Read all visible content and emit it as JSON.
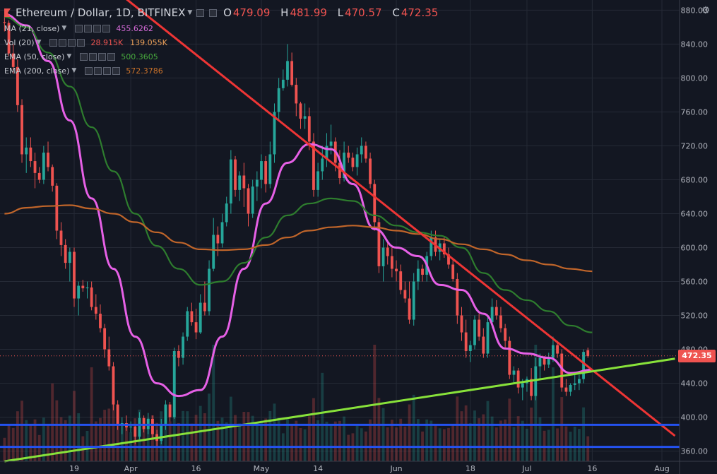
{
  "legend": {
    "symbol": "Ethereum / Dollar, 1D, BITFINEX",
    "ohlc": [
      {
        "key": "O",
        "value": "479.09"
      },
      {
        "key": "H",
        "value": "481.99"
      },
      {
        "key": "L",
        "value": "470.57"
      },
      {
        "key": "C",
        "value": "472.35"
      }
    ],
    "indicators": [
      {
        "label": "MA (21, close)",
        "values": [
          "455.6262"
        ],
        "colors": [
          "#d46bd7"
        ]
      },
      {
        "label": "Vol (20)",
        "values": [
          "28.915K",
          "139.055K"
        ],
        "colors": [
          "#ef5350",
          "#f0a35a"
        ]
      },
      {
        "label": "EMA (50, close)",
        "values": [
          "500.3605"
        ],
        "colors": [
          "#47a93d"
        ]
      },
      {
        "label": "EMA (200, close)",
        "values": [
          "572.3786"
        ],
        "colors": [
          "#c8712a"
        ]
      }
    ]
  },
  "colors": {
    "background": "#131722",
    "grid": "#252a36",
    "up": "#26a69a",
    "down": "#ef5350",
    "ma21": "#e660e6",
    "ema50": "#2e7d2e",
    "ema200": "#c0652a",
    "trendline_down": "#ee3535",
    "trendline_up": "#88e23a",
    "hline": "#2452f0"
  },
  "chart_data": {
    "type": "candlestick",
    "title": "Ethereum / Dollar, 1D, BITFINEX",
    "last_price": "472.35",
    "ylim": [
      348,
      892
    ],
    "y_ticks": [
      "880.00",
      "840.00",
      "800.00",
      "760.00",
      "720.00",
      "680.00",
      "640.00",
      "600.00",
      "560.00",
      "520.00",
      "480.00",
      "440.00",
      "400.00",
      "360.00"
    ],
    "x_ticks": [
      "19",
      "Apr",
      "16",
      "May",
      "14",
      "Jun",
      "18",
      "Jul",
      "16",
      "Aug"
    ],
    "candles_from": "2018-03-03",
    "candles_to": "2018-07-16",
    "ohlc_daily": [
      [
        866,
        874,
        855,
        865
      ],
      [
        865,
        868,
        826,
        829
      ],
      [
        829,
        840,
        805,
        813
      ],
      [
        813,
        822,
        760,
        768
      ],
      [
        768,
        775,
        700,
        710
      ],
      [
        710,
        730,
        688,
        718
      ],
      [
        718,
        730,
        695,
        702
      ],
      [
        702,
        712,
        670,
        688
      ],
      [
        688,
        695,
        676,
        680
      ],
      [
        680,
        720,
        675,
        712
      ],
      [
        712,
        725,
        690,
        695
      ],
      [
        695,
        698,
        666,
        673
      ],
      [
        673,
        676,
        610,
        620
      ],
      [
        620,
        630,
        590,
        603
      ],
      [
        603,
        610,
        575,
        582
      ],
      [
        582,
        600,
        560,
        595
      ],
      [
        595,
        600,
        530,
        540
      ],
      [
        540,
        560,
        520,
        555
      ],
      [
        555,
        562,
        548,
        552
      ],
      [
        552,
        560,
        540,
        553
      ],
      [
        553,
        560,
        526,
        530
      ],
      [
        530,
        545,
        515,
        522
      ],
      [
        522,
        533,
        500,
        505
      ],
      [
        505,
        510,
        470,
        480
      ],
      [
        480,
        495,
        455,
        460
      ],
      [
        460,
        465,
        408,
        415
      ],
      [
        415,
        420,
        385,
        392
      ],
      [
        392,
        400,
        380,
        393
      ],
      [
        393,
        402,
        384,
        388
      ],
      [
        388,
        395,
        382,
        389
      ],
      [
        389,
        392,
        368,
        377
      ],
      [
        377,
        406,
        374,
        399
      ],
      [
        399,
        402,
        382,
        386
      ],
      [
        386,
        405,
        380,
        398
      ],
      [
        398,
        402,
        375,
        380
      ],
      [
        380,
        385,
        365,
        372
      ],
      [
        372,
        398,
        368,
        392
      ],
      [
        392,
        420,
        385,
        415
      ],
      [
        415,
        418,
        395,
        400
      ],
      [
        400,
        482,
        398,
        478
      ],
      [
        478,
        485,
        460,
        470
      ],
      [
        470,
        500,
        462,
        495
      ],
      [
        495,
        530,
        490,
        525
      ],
      [
        525,
        535,
        508,
        512
      ],
      [
        512,
        528,
        492,
        500
      ],
      [
        500,
        545,
        498,
        535
      ],
      [
        535,
        560,
        520,
        525
      ],
      [
        525,
        585,
        520,
        575
      ],
      [
        575,
        635,
        572,
        615
      ],
      [
        615,
        625,
        590,
        605
      ],
      [
        605,
        640,
        600,
        630
      ],
      [
        630,
        660,
        625,
        652
      ],
      [
        652,
        715,
        640,
        704
      ],
      [
        704,
        708,
        660,
        668
      ],
      [
        668,
        690,
        655,
        685
      ],
      [
        685,
        700,
        648,
        670
      ],
      [
        670,
        675,
        625,
        640
      ],
      [
        640,
        680,
        635,
        672
      ],
      [
        672,
        690,
        655,
        680
      ],
      [
        680,
        710,
        670,
        702
      ],
      [
        702,
        708,
        665,
        675
      ],
      [
        675,
        725,
        670,
        710
      ],
      [
        710,
        770,
        700,
        760
      ],
      [
        760,
        800,
        750,
        788
      ],
      [
        788,
        810,
        785,
        798
      ],
      [
        798,
        840,
        790,
        820
      ],
      [
        820,
        830,
        790,
        792
      ],
      [
        792,
        800,
        755,
        770
      ],
      [
        770,
        772,
        740,
        752
      ],
      [
        752,
        770,
        740,
        755
      ],
      [
        755,
        765,
        715,
        725
      ],
      [
        725,
        735,
        660,
        668
      ],
      [
        668,
        700,
        660,
        690
      ],
      [
        690,
        720,
        680,
        705
      ],
      [
        705,
        735,
        695,
        720
      ],
      [
        720,
        745,
        710,
        725
      ],
      [
        725,
        730,
        690,
        700
      ],
      [
        700,
        715,
        675,
        682
      ],
      [
        682,
        725,
        678,
        712
      ],
      [
        712,
        720,
        700,
        706
      ],
      [
        706,
        712,
        690,
        695
      ],
      [
        695,
        718,
        685,
        710
      ],
      [
        710,
        730,
        700,
        720
      ],
      [
        720,
        725,
        700,
        705
      ],
      [
        705,
        712,
        670,
        675
      ],
      [
        675,
        680,
        620,
        630
      ],
      [
        630,
        635,
        570,
        578
      ],
      [
        578,
        610,
        560,
        600
      ],
      [
        600,
        606,
        580,
        590
      ],
      [
        590,
        600,
        565,
        575
      ],
      [
        575,
        585,
        560,
        572
      ],
      [
        572,
        580,
        545,
        550
      ],
      [
        550,
        560,
        535,
        540
      ],
      [
        540,
        560,
        510,
        515
      ],
      [
        515,
        570,
        508,
        560
      ],
      [
        560,
        585,
        550,
        575
      ],
      [
        575,
        580,
        560,
        568
      ],
      [
        568,
        595,
        560,
        590
      ],
      [
        590,
        620,
        585,
        612
      ],
      [
        612,
        620,
        590,
        595
      ],
      [
        595,
        610,
        585,
        605
      ],
      [
        605,
        612,
        588,
        592
      ],
      [
        592,
        600,
        575,
        580
      ],
      [
        580,
        588,
        560,
        563
      ],
      [
        563,
        570,
        510,
        520
      ],
      [
        520,
        530,
        490,
        500
      ],
      [
        500,
        515,
        470,
        478
      ],
      [
        478,
        490,
        465,
        485
      ],
      [
        485,
        520,
        480,
        515
      ],
      [
        515,
        522,
        490,
        495
      ],
      [
        495,
        505,
        470,
        475
      ],
      [
        475,
        520,
        470,
        512
      ],
      [
        512,
        540,
        505,
        530
      ],
      [
        530,
        538,
        515,
        520
      ],
      [
        520,
        530,
        500,
        505
      ],
      [
        505,
        510,
        480,
        490
      ],
      [
        490,
        495,
        445,
        450
      ],
      [
        450,
        460,
        440,
        455
      ],
      [
        455,
        458,
        428,
        435
      ],
      [
        435,
        445,
        420,
        440
      ],
      [
        440,
        448,
        430,
        445
      ],
      [
        445,
        458,
        420,
        425
      ],
      [
        425,
        470,
        420,
        460
      ],
      [
        460,
        475,
        445,
        470
      ],
      [
        470,
        472,
        455,
        462
      ],
      [
        462,
        476,
        458,
        470
      ],
      [
        470,
        495,
        465,
        485
      ],
      [
        485,
        490,
        470,
        475
      ],
      [
        475,
        480,
        430,
        435
      ],
      [
        435,
        445,
        425,
        430
      ],
      [
        430,
        440,
        425,
        438
      ],
      [
        438,
        452,
        432,
        440
      ],
      [
        440,
        450,
        432,
        445
      ],
      [
        445,
        480,
        440,
        477
      ],
      [
        479,
        482,
        470,
        472
      ]
    ],
    "volume_note": "Vol (20)",
    "series": [
      {
        "name": "MA (21, close)",
        "dates": [
          "2018-03-03",
          "2018-03-08",
          "2018-03-13",
          "2018-03-18",
          "2018-03-23",
          "2018-03-28",
          "2018-04-02",
          "2018-04-07",
          "2018-04-12",
          "2018-04-17",
          "2018-04-22",
          "2018-04-27",
          "2018-05-02",
          "2018-05-07",
          "2018-05-12",
          "2018-05-17",
          "2018-05-22",
          "2018-05-27",
          "2018-06-01",
          "2018-06-06",
          "2018-06-11",
          "2018-06-16",
          "2018-06-21",
          "2018-06-26",
          "2018-07-01",
          "2018-07-06",
          "2018-07-11",
          "2018-07-16"
        ],
        "values": [
          875,
          862,
          820,
          750,
          658,
          575,
          495,
          440,
          425,
          432,
          495,
          575,
          652,
          700,
          722,
          716,
          675,
          622,
          600,
          590,
          556,
          550,
          522,
          481,
          475,
          470,
          452,
          456
        ]
      },
      {
        "name": "EMA (50, close)",
        "dates": [
          "2018-03-03",
          "2018-03-08",
          "2018-03-13",
          "2018-03-18",
          "2018-03-23",
          "2018-03-28",
          "2018-04-02",
          "2018-04-07",
          "2018-04-12",
          "2018-04-17",
          "2018-04-22",
          "2018-04-27",
          "2018-05-02",
          "2018-05-07",
          "2018-05-12",
          "2018-05-17",
          "2018-05-22",
          "2018-05-27",
          "2018-06-01",
          "2018-06-06",
          "2018-06-11",
          "2018-06-16",
          "2018-06-21",
          "2018-06-26",
          "2018-07-01",
          "2018-07-06",
          "2018-07-11",
          "2018-07-16"
        ],
        "values": [
          872,
          860,
          830,
          790,
          742,
          690,
          640,
          602,
          575,
          556,
          560,
          582,
          612,
          638,
          652,
          658,
          655,
          638,
          626,
          618,
          614,
          600,
          570,
          550,
          538,
          525,
          508,
          500
        ]
      },
      {
        "name": "EMA (200, close)",
        "dates": [
          "2018-03-03",
          "2018-03-08",
          "2018-03-13",
          "2018-03-18",
          "2018-03-23",
          "2018-03-28",
          "2018-04-02",
          "2018-04-07",
          "2018-04-12",
          "2018-04-17",
          "2018-04-22",
          "2018-04-27",
          "2018-05-02",
          "2018-05-07",
          "2018-05-12",
          "2018-05-17",
          "2018-05-22",
          "2018-05-27",
          "2018-06-01",
          "2018-06-06",
          "2018-06-11",
          "2018-06-16",
          "2018-06-21",
          "2018-06-26",
          "2018-07-01",
          "2018-07-06",
          "2018-07-11",
          "2018-07-16"
        ],
        "values": [
          640,
          647,
          649,
          650,
          646,
          640,
          630,
          618,
          606,
          598,
          597,
          598,
          603,
          612,
          620,
          624,
          626,
          624,
          620,
          616,
          610,
          604,
          598,
          592,
          585,
          580,
          575,
          572
        ]
      }
    ],
    "drawings": [
      {
        "name": "descending trendline",
        "from": [
          "2018-03-31",
          893
        ],
        "to": [
          "2018-08-04",
          378
        ]
      },
      {
        "name": "ascending trendline",
        "from": [
          "2018-03-03",
          348
        ],
        "to": [
          "2018-08-04",
          469
        ]
      },
      {
        "name": "horizontal support 1",
        "value": 391
      },
      {
        "name": "horizontal support 2",
        "value": 365
      }
    ]
  }
}
